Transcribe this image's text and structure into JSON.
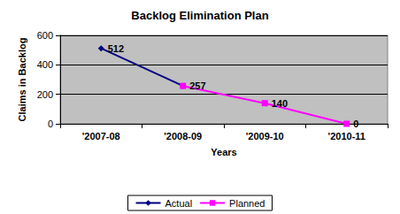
{
  "chart_data": {
    "type": "line",
    "title": "Backlog Elimination Plan",
    "x_label": "Years",
    "y_label": "Claims in Backlog",
    "categories": [
      "'2007-08",
      "'2008-09",
      "'2009-10",
      "'2010-11"
    ],
    "series": [
      {
        "name": "Actual",
        "color": "#000080",
        "marker": "diamond",
        "values": [
          512,
          257,
          null,
          null
        ]
      },
      {
        "name": "Planned",
        "color": "#ff00ff",
        "marker": "square",
        "values": [
          null,
          257,
          140,
          0
        ]
      }
    ],
    "ylim": [
      0,
      600
    ],
    "yticks": [
      0,
      200,
      400,
      600
    ],
    "grid": true,
    "legend": "bottom",
    "data_labels": true
  }
}
